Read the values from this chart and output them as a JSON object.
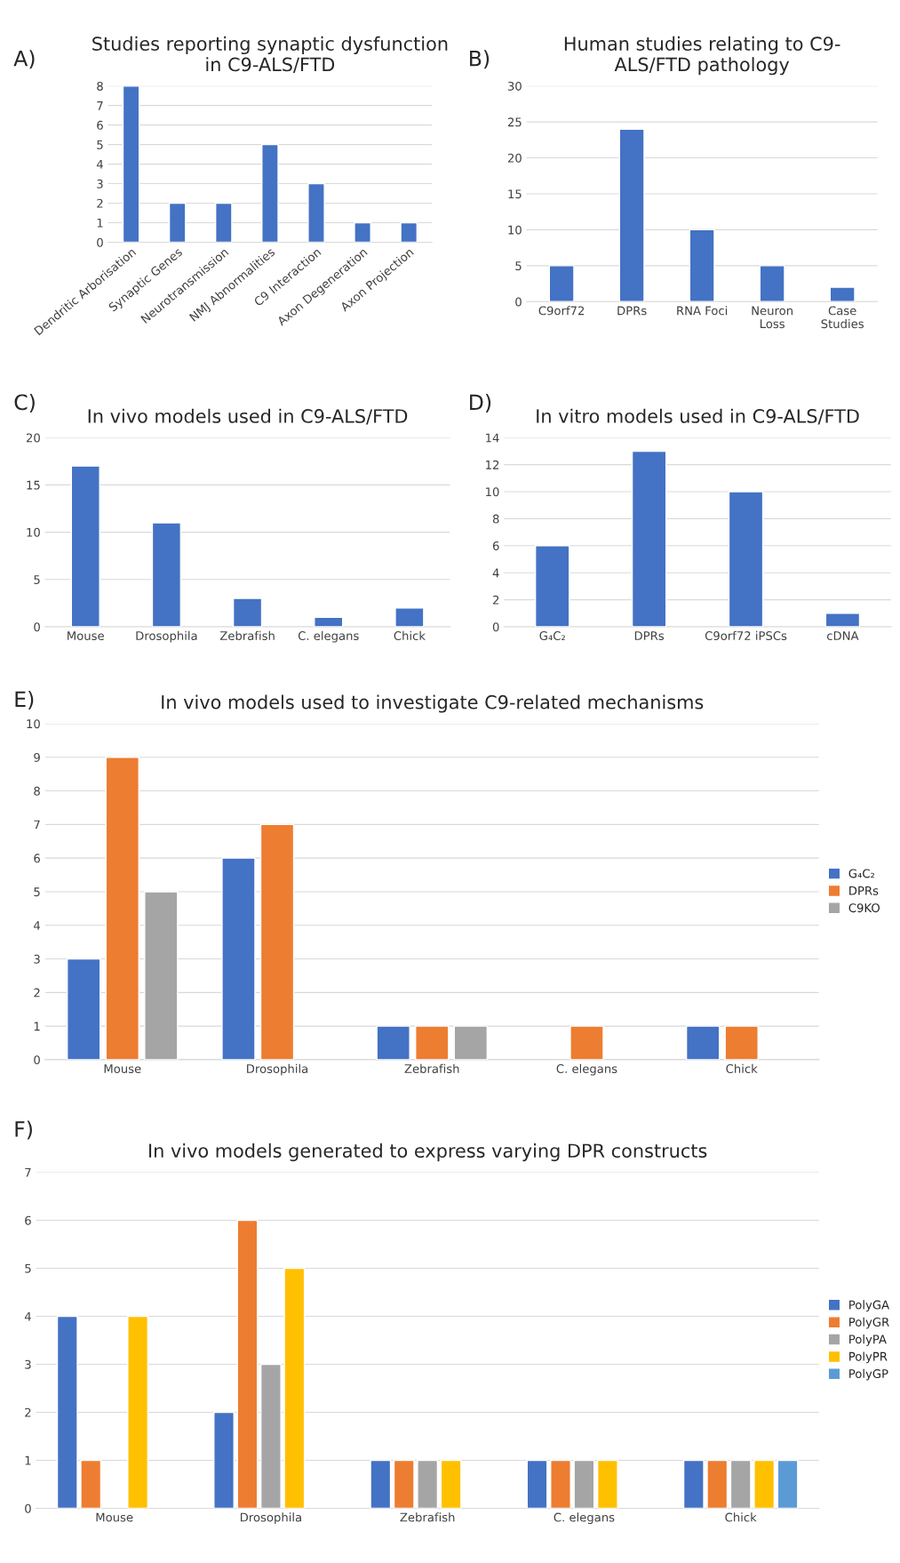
{
  "chart_data": [
    {
      "type": "bar",
      "title": "Studies reporting synaptic dysfunction\nin C9-ALS/FTD",
      "annotations": [
        "A)"
      ],
      "categories": [
        "Dendritic Arborisation",
        "Synaptic Genes",
        "Neurotransmission",
        "NMJ Abnormalities",
        "C9 Interaction",
        "Axon Degeneration",
        "Axon Projection"
      ],
      "values": [
        8,
        2,
        2,
        5,
        3,
        1,
        1
      ],
      "color": "#4472c4",
      "ylim": [
        0,
        8
      ],
      "yticks": [
        0,
        1,
        2,
        3,
        4,
        5,
        6,
        7,
        8
      ],
      "grid": "y",
      "legend": false
    },
    {
      "type": "bar",
      "title": "Human studies relating to C9-\nALS/FTD pathology",
      "annotations": [
        "B)"
      ],
      "categories": [
        "C9orf72",
        "DPRs",
        "RNA Foci",
        "Neuron\nLoss",
        "Case\nStudies"
      ],
      "values": [
        5,
        24,
        10,
        5,
        2
      ],
      "color": "#4472c4",
      "ylim": [
        0,
        30
      ],
      "yticks": [
        0,
        5,
        10,
        15,
        20,
        25,
        30
      ],
      "grid": "y",
      "legend": false
    },
    {
      "type": "bar",
      "title": "In vivo models used in C9-ALS/FTD",
      "annotations": [
        "C)"
      ],
      "categories": [
        "Mouse",
        "Drosophila",
        "Zebrafish",
        "C. elegans",
        "Chick"
      ],
      "values": [
        17,
        11,
        3,
        1,
        2
      ],
      "color": "#4472c4",
      "ylim": [
        0,
        20
      ],
      "yticks": [
        0,
        5,
        10,
        15,
        20
      ],
      "grid": "y",
      "legend": false
    },
    {
      "type": "bar",
      "title": "In vitro models used in C9-ALS/FTD",
      "annotations": [
        "D)"
      ],
      "categories": [
        "G₄C₂",
        "DPRs",
        "C9orf72 iPSCs",
        "cDNA"
      ],
      "values": [
        6,
        13,
        10,
        1
      ],
      "color": "#4472c4",
      "ylim": [
        0,
        14
      ],
      "yticks": [
        0,
        2,
        4,
        6,
        8,
        10,
        12,
        14
      ],
      "grid": "y",
      "legend": false
    },
    {
      "type": "bar",
      "title": "In vivo models used to investigate C9-related mechanisms",
      "annotations": [
        "E)"
      ],
      "categories": [
        "Mouse",
        "Drosophila",
        "Zebrafish",
        "C. elegans",
        "Chick"
      ],
      "series": [
        {
          "name": "G₄C₂",
          "color": "#4472c4",
          "values": [
            3,
            6,
            1,
            null,
            1
          ]
        },
        {
          "name": "DPRs",
          "color": "#ed7d31",
          "values": [
            9,
            7,
            1,
            1,
            1
          ]
        },
        {
          "name": "C9KO",
          "color": "#a5a5a5",
          "values": [
            5,
            null,
            1,
            null,
            null
          ]
        }
      ],
      "ylim": [
        0,
        10
      ],
      "yticks": [
        0,
        1,
        2,
        3,
        4,
        5,
        6,
        7,
        8,
        9,
        10
      ],
      "grid": "y",
      "legend": "right"
    },
    {
      "type": "bar",
      "title": "In vivo models generated to express varying DPR constructs",
      "annotations": [
        "F)"
      ],
      "categories": [
        "Mouse",
        "Drosophila",
        "Zebrafish",
        "C. elegans",
        "Chick"
      ],
      "series": [
        {
          "name": "PolyGA",
          "color": "#4472c4",
          "values": [
            4,
            2,
            1,
            1,
            1
          ]
        },
        {
          "name": "PolyGR",
          "color": "#ed7d31",
          "values": [
            1,
            6,
            1,
            1,
            1
          ]
        },
        {
          "name": "PolyPA",
          "color": "#a5a5a5",
          "values": [
            null,
            3,
            1,
            1,
            1
          ]
        },
        {
          "name": "PolyPR",
          "color": "#ffc000",
          "values": [
            4,
            5,
            1,
            1,
            1
          ]
        },
        {
          "name": "PolyGP",
          "color": "#5b9bd5",
          "values": [
            null,
            null,
            null,
            null,
            1
          ]
        }
      ],
      "ylim": [
        0,
        7
      ],
      "yticks": [
        0,
        1,
        2,
        3,
        4,
        5,
        6,
        7
      ],
      "grid": "y",
      "legend": "right"
    }
  ]
}
